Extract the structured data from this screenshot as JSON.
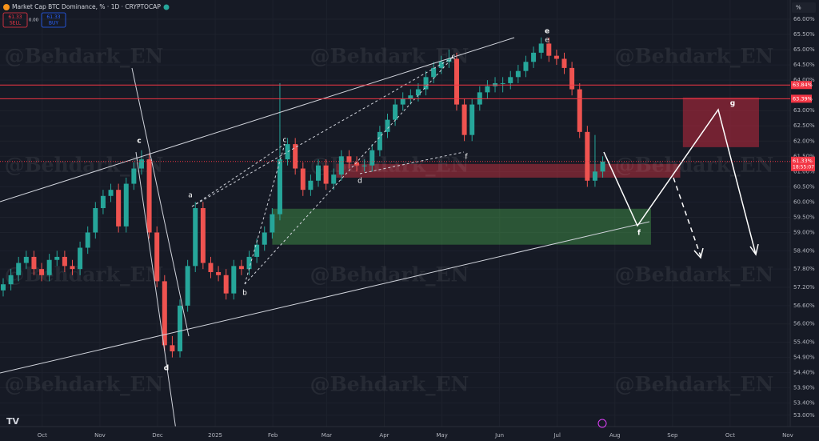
{
  "chart_data": {
    "type": "candlestick",
    "title": "Market Cap BTC Dominance, % · 1D · CRYPTOCAP",
    "header": {
      "sell_price": "61.33",
      "sell": "SELL",
      "spread": "0.00",
      "buy_price": "61.33",
      "buy": "BUY",
      "scale_unit": "%"
    },
    "watermark": "@Behdark_EN",
    "up_color": "#26a69a",
    "down_color": "#ef5350",
    "xlim": [
      0,
      410
    ],
    "xticks": [
      {
        "value": 22,
        "label": "Oct"
      },
      {
        "value": 52,
        "label": "Nov"
      },
      {
        "value": 82,
        "label": "Dec"
      },
      {
        "value": 112,
        "label": "2025"
      },
      {
        "value": 142,
        "label": "Feb"
      },
      {
        "value": 170,
        "label": "Mar"
      },
      {
        "value": 200,
        "label": "Apr"
      },
      {
        "value": 230,
        "label": "May"
      },
      {
        "value": 260,
        "label": "Jun"
      },
      {
        "value": 290,
        "label": "Jul"
      },
      {
        "value": 320,
        "label": "Aug"
      },
      {
        "value": 350,
        "label": "Sep"
      },
      {
        "value": 380,
        "label": "Oct"
      },
      {
        "value": 410,
        "label": "Nov"
      }
    ],
    "ylim": [
      52.63,
      66.63
    ],
    "yticks": [
      {
        "value": 66,
        "label": "66.00%"
      },
      {
        "value": 65.5,
        "label": "65.50%"
      },
      {
        "value": 65,
        "label": "65.00%"
      },
      {
        "value": 64.5,
        "label": "64.50%"
      },
      {
        "value": 64,
        "label": "64.00%"
      },
      {
        "value": 63,
        "label": "63.00%"
      },
      {
        "value": 62.5,
        "label": "62.50%"
      },
      {
        "value": 62,
        "label": "62.00%"
      },
      {
        "value": 61.5,
        "label": "61.50%"
      },
      {
        "value": 61,
        "label": "61.00%"
      },
      {
        "value": 60.5,
        "label": "60.50%"
      },
      {
        "value": 60,
        "label": "60.00%"
      },
      {
        "value": 59.5,
        "label": "59.50%"
      },
      {
        "value": 59,
        "label": "59.00%"
      },
      {
        "value": 58.4,
        "label": "58.40%"
      },
      {
        "value": 57.8,
        "label": "57.80%"
      },
      {
        "value": 57.2,
        "label": "57.20%"
      },
      {
        "value": 56.6,
        "label": "56.60%"
      },
      {
        "value": 56,
        "label": "56.00%"
      },
      {
        "value": 55.4,
        "label": "55.40%"
      },
      {
        "value": 54.9,
        "label": "54.90%"
      },
      {
        "value": 54.4,
        "label": "54.40%"
      },
      {
        "value": 53.9,
        "label": "53.90%"
      },
      {
        "value": 53.4,
        "label": "53.40%"
      },
      {
        "value": 53,
        "label": "53.00%"
      }
    ],
    "grid": true,
    "price_lines": [
      {
        "value": 63.84,
        "label": "63.84%",
        "color": "#f23645"
      },
      {
        "value": 63.39,
        "label": "63.39%",
        "color": "#f23645"
      }
    ],
    "last_price": {
      "value": 61.33,
      "label": "61.33%",
      "countdown": "18:55:07",
      "color": "#f23645"
    },
    "zones": [
      {
        "x": [
          141.7,
          338.8
        ],
        "y": [
          58.6,
          59.78
        ],
        "color": "rgba(76,175,80,0.4)"
      },
      {
        "x": [
          175,
          354
        ],
        "y": [
          60.8,
          61.25
        ],
        "color": "rgba(242,54,69,0.4)"
      },
      {
        "x": [
          355.4,
          395
        ],
        "y": [
          61.8,
          63.43
        ],
        "color": "rgba(178,40,60,0.6)"
      }
    ],
    "wave_labels": [
      "c",
      "d",
      "a",
      "c",
      "b",
      "d",
      "c",
      "f",
      "e",
      "e",
      "f",
      "g"
    ],
    "candles": [
      [
        0,
        57.1,
        57.5,
        56.9,
        57.3
      ],
      [
        4,
        57.3,
        57.8,
        57.1,
        57.6
      ],
      [
        8,
        57.6,
        58.2,
        57.4,
        58.0
      ],
      [
        12,
        58.0,
        58.4,
        57.8,
        58.2
      ],
      [
        16,
        58.2,
        58.4,
        57.6,
        57.8
      ],
      [
        20,
        57.8,
        58.0,
        57.4,
        57.6
      ],
      [
        24,
        57.6,
        58.3,
        57.4,
        58.1
      ],
      [
        28,
        58.1,
        58.4,
        57.9,
        58.2
      ],
      [
        32,
        58.2,
        58.4,
        57.7,
        57.9
      ],
      [
        36,
        57.9,
        58.1,
        57.6,
        57.8
      ],
      [
        40,
        57.8,
        58.7,
        57.6,
        58.5
      ],
      [
        44,
        58.5,
        59.2,
        58.3,
        59.0
      ],
      [
        48,
        59.0,
        60.0,
        58.8,
        59.8
      ],
      [
        52,
        59.8,
        60.4,
        59.6,
        60.2
      ],
      [
        56,
        60.2,
        60.6,
        60.0,
        60.4
      ],
      [
        60,
        60.4,
        60.6,
        59.0,
        59.2
      ],
      [
        64,
        59.2,
        60.8,
        59.0,
        60.6
      ],
      [
        68,
        60.6,
        61.3,
        60.4,
        61.1
      ],
      [
        72,
        61.1,
        61.7,
        60.9,
        61.4
      ],
      [
        76,
        61.4,
        61.6,
        58.8,
        59.0
      ],
      [
        80,
        59.0,
        59.2,
        57.2,
        57.4
      ],
      [
        84,
        57.4,
        57.6,
        55.1,
        55.3
      ],
      [
        88,
        55.3,
        55.6,
        54.9,
        55.1
      ],
      [
        92,
        55.1,
        56.8,
        54.9,
        56.6
      ],
      [
        96,
        56.6,
        58.1,
        56.4,
        57.9
      ],
      [
        100,
        57.9,
        60.0,
        57.7,
        59.8
      ],
      [
        104,
        59.8,
        60.0,
        57.8,
        58.0
      ],
      [
        108,
        58.0,
        58.2,
        57.5,
        57.7
      ],
      [
        112,
        57.7,
        57.9,
        57.4,
        57.6
      ],
      [
        116,
        57.6,
        57.8,
        56.8,
        57.0
      ],
      [
        120,
        57.0,
        58.1,
        56.8,
        57.9
      ],
      [
        124,
        57.9,
        58.1,
        57.6,
        57.8
      ],
      [
        128,
        57.8,
        58.4,
        57.6,
        58.2
      ],
      [
        132,
        58.2,
        58.8,
        58.0,
        58.6
      ],
      [
        136,
        58.6,
        59.2,
        58.4,
        59.0
      ],
      [
        140,
        59.0,
        59.8,
        58.8,
        59.6
      ],
      [
        144,
        59.6,
        63.9,
        59.4,
        61.4
      ],
      [
        148,
        61.4,
        62.1,
        61.2,
        61.9
      ],
      [
        152,
        61.9,
        62.1,
        60.9,
        61.1
      ],
      [
        156,
        61.1,
        61.3,
        60.2,
        60.4
      ],
      [
        160,
        60.4,
        60.9,
        60.2,
        60.7
      ],
      [
        164,
        60.7,
        61.4,
        60.5,
        61.2
      ],
      [
        168,
        61.2,
        61.4,
        60.4,
        60.6
      ],
      [
        172,
        60.6,
        61.1,
        60.4,
        60.9
      ],
      [
        176,
        60.9,
        61.7,
        60.7,
        61.5
      ],
      [
        180,
        61.5,
        61.7,
        61.1,
        61.3
      ],
      [
        184,
        61.3,
        61.5,
        61.0,
        61.2
      ],
      [
        188,
        61.2,
        61.4,
        61.0,
        61.2
      ],
      [
        192,
        61.2,
        61.9,
        61.0,
        61.7
      ],
      [
        196,
        61.7,
        62.5,
        61.5,
        62.3
      ],
      [
        200,
        62.3,
        62.9,
        62.1,
        62.7
      ],
      [
        204,
        62.7,
        63.4,
        62.5,
        63.2
      ],
      [
        208,
        63.2,
        63.6,
        63.0,
        63.4
      ],
      [
        212,
        63.4,
        63.7,
        63.2,
        63.5
      ],
      [
        216,
        63.5,
        63.9,
        63.3,
        63.7
      ],
      [
        220,
        63.7,
        64.3,
        63.5,
        64.1
      ],
      [
        224,
        64.1,
        64.6,
        63.9,
        64.4
      ],
      [
        228,
        64.4,
        64.8,
        64.2,
        64.6
      ],
      [
        232,
        64.6,
        65.0,
        64.4,
        64.7
      ],
      [
        236,
        64.7,
        64.9,
        63.0,
        63.2
      ],
      [
        240,
        63.2,
        63.4,
        62.0,
        62.2
      ],
      [
        244,
        62.2,
        63.4,
        62.0,
        63.2
      ],
      [
        248,
        63.2,
        63.8,
        63.0,
        63.6
      ],
      [
        252,
        63.6,
        64.0,
        63.4,
        63.8
      ],
      [
        256,
        63.8,
        64.1,
        63.6,
        63.9
      ],
      [
        260,
        63.9,
        64.1,
        63.6,
        63.9
      ],
      [
        264,
        63.9,
        64.3,
        63.7,
        64.1
      ],
      [
        268,
        64.1,
        64.5,
        63.9,
        64.3
      ],
      [
        272,
        64.3,
        64.8,
        64.1,
        64.6
      ],
      [
        276,
        64.6,
        65.1,
        64.4,
        64.9
      ],
      [
        280,
        64.9,
        65.4,
        64.7,
        65.2
      ],
      [
        284,
        65.2,
        65.4,
        64.6,
        64.8
      ],
      [
        288,
        64.8,
        65.0,
        64.5,
        64.7
      ],
      [
        292,
        64.7,
        64.9,
        64.2,
        64.4
      ],
      [
        296,
        64.4,
        64.6,
        63.5,
        63.7
      ],
      [
        300,
        63.7,
        63.9,
        62.1,
        62.3
      ],
      [
        304,
        62.3,
        62.5,
        60.5,
        60.7
      ],
      [
        308,
        60.7,
        62.2,
        60.5,
        61.0
      ],
      [
        312,
        61.0,
        61.5,
        60.8,
        61.33
      ]
    ]
  }
}
